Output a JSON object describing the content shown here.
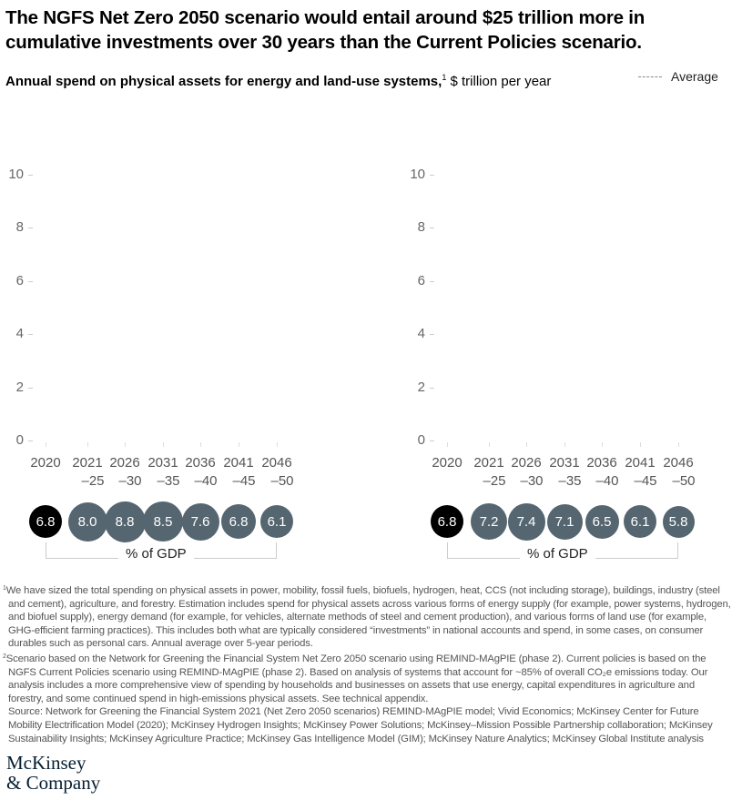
{
  "header": {
    "title": "The NGFS Net Zero 2050 scenario would entail around $25 trillion more in cumulative investments over 30 years than the Current Policies scenario.",
    "subtitle_bold": "Annual spend on physical assets for energy and land-use systems,",
    "subtitle_sup": "1",
    "subtitle_unit": " $ trillion per year",
    "legend_label": "Average"
  },
  "chart_data": [
    {
      "type": "bar",
      "title": "",
      "xlabel": "",
      "ylabel": "$ trillion per year",
      "ylim": [
        0,
        10
      ],
      "yticks": [
        "10",
        "8",
        "6",
        "4",
        "2",
        "0"
      ],
      "categories": [
        "2020",
        "2021–25",
        "2026–30",
        "2031–35",
        "2036–40",
        "2041–45",
        "2046–50"
      ],
      "category_lines": [
        [
          "2020",
          ""
        ],
        [
          "2021",
          "–25"
        ],
        [
          "2026",
          "–30"
        ],
        [
          "2031",
          "–35"
        ],
        [
          "2036",
          "–40"
        ],
        [
          "2041",
          "–45"
        ],
        [
          "2046",
          "–50"
        ]
      ],
      "values": [],
      "series": [
        {
          "name": "% of GDP",
          "values": [
            6.8,
            8.0,
            8.8,
            8.5,
            7.6,
            6.8,
            6.1
          ],
          "labels": [
            "6.8",
            "8.0",
            "8.8",
            "8.5",
            "7.6",
            "6.8",
            "6.1"
          ]
        }
      ],
      "bracket_label": "% of GDP",
      "grid": false
    },
    {
      "type": "bar",
      "title": "",
      "xlabel": "",
      "ylabel": "$ trillion per year",
      "ylim": [
        0,
        10
      ],
      "yticks": [
        "10",
        "8",
        "6",
        "4",
        "2",
        "0"
      ],
      "categories": [
        "2020",
        "2021–25",
        "2026–30",
        "2031–35",
        "2036–40",
        "2041–45",
        "2046–50"
      ],
      "category_lines": [
        [
          "2020",
          ""
        ],
        [
          "2021",
          "–25"
        ],
        [
          "2026",
          "–30"
        ],
        [
          "2031",
          "–35"
        ],
        [
          "2036",
          "–40"
        ],
        [
          "2041",
          "–45"
        ],
        [
          "2046",
          "–50"
        ]
      ],
      "values": [],
      "series": [
        {
          "name": "% of GDP",
          "values": [
            6.8,
            7.2,
            7.4,
            7.1,
            6.5,
            6.1,
            5.8
          ],
          "labels": [
            "6.8",
            "7.2",
            "7.4",
            "7.1",
            "6.5",
            "6.1",
            "5.8"
          ]
        }
      ],
      "bracket_label": "% of GDP",
      "grid": false
    }
  ],
  "footnotes": {
    "note1_sup": "1",
    "note1": "We have sized the total spending on physical assets in power, mobility, fossil fuels, biofuels, hydrogen, heat, CCS (not including storage), buildings, industry (steel and cement), agriculture, and forestry. Estimation includes spend for physical assets across various forms of energy supply (for example, power systems, hydrogen, and biofuel supply), energy demand (for example, for vehicles, alternate methods of steel and cement production), and various forms of land use (for example, GHG-efficient farming practices). This includes both what are typically considered “investments” in national accounts and spend, in some cases, on consumer durables such as personal cars. Annual average over 5-year periods.",
    "note2_sup": "2",
    "note2": "Scenario based on the Network for Greening the Financial System Net Zero 2050 scenario using REMIND-MAgPIE (phase 2). Current policies is based on the NGFS Current Policies scenario using REMIND-MAgPIE (phase 2). Based on analysis of systems that account for ~85% of overall CO₂e emissions today. Our analysis includes a more comprehensive view of spending by households and businesses on assets that use energy, capital expenditures in agriculture and forestry, and some continued spend in high-emissions physical assets. See technical appendix.",
    "source": "Source: Network for Greening the Financial System 2021 (Net Zero 2050 scenarios) REMIND-MAgPIE model; Vivid Economics; McKinsey Center for Future Mobility Electrification Model (2020); McKinsey Hydrogen Insights; McKinsey Power Solutions; McKinsey–Mission Possible Partnership collaboration; McKinsey Sustainability Insights; McKinsey Agriculture Practice; McKinsey Gas Intelligence Model (GIM); McKinsey Nature Analytics; McKinsey Global Institute analysis"
  },
  "logo": {
    "line1": "McKinsey",
    "line2": "& Company"
  }
}
